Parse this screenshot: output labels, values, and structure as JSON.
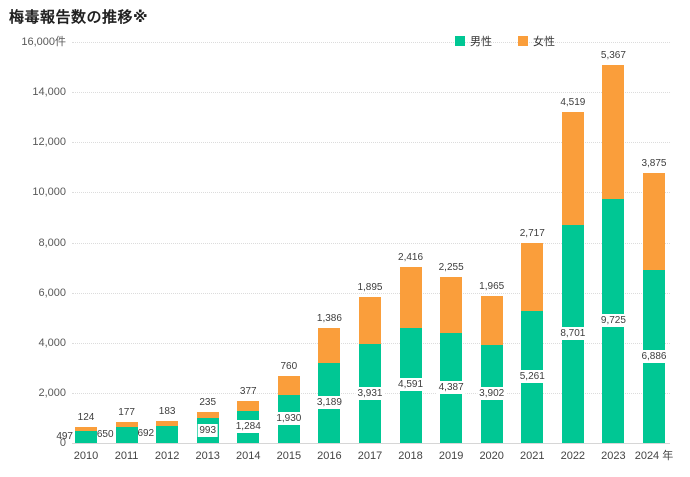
{
  "page": {
    "background": "#ffffff"
  },
  "chart_data": {
    "type": "bar",
    "stacked": true,
    "title": "梅毒報告数の推移※",
    "categories": [
      "2010",
      "2011",
      "2012",
      "2013",
      "2014",
      "2015",
      "2016",
      "2017",
      "2018",
      "2019",
      "2020",
      "2021",
      "2022",
      "2023",
      "2024 年"
    ],
    "series": [
      {
        "name": "男性",
        "color": "#00C794",
        "values": [
          497,
          650,
          692,
          993,
          1284,
          1930,
          3189,
          3931,
          4591,
          4387,
          3902,
          5261,
          8701,
          9725,
          6886
        ]
      },
      {
        "name": "女性",
        "color": "#FA9E3B",
        "values": [
          124,
          177,
          183,
          235,
          377,
          760,
          1386,
          1895,
          2416,
          2255,
          1965,
          2717,
          4519,
          5367,
          3875
        ]
      }
    ],
    "ylim": [
      0,
      16000
    ],
    "ytick_step": 2000,
    "y_axis_unit": "件",
    "y_tick_labels": [
      "0",
      "2,000",
      "4,000",
      "6,000",
      "8,000",
      "10,000",
      "12,000",
      "14,000",
      "16,000件"
    ],
    "grid": true,
    "legend_position": "top",
    "data_label_style": {
      "male": "inside-bar-white-box (left of bar for 2010-2012)",
      "female": "above bar top"
    }
  },
  "legend": {
    "items": [
      {
        "label": "男性",
        "color": "#00C794"
      },
      {
        "label": "女性",
        "color": "#FA9E3B"
      }
    ]
  },
  "colors": {
    "male": "#00C794",
    "female": "#FA9E3B",
    "gridline": "#dcdcdc",
    "axis_line": "#d6d6d6",
    "tick_text": "#595959",
    "value_label_text": "#3d3d3d",
    "title_text": "#212121"
  }
}
